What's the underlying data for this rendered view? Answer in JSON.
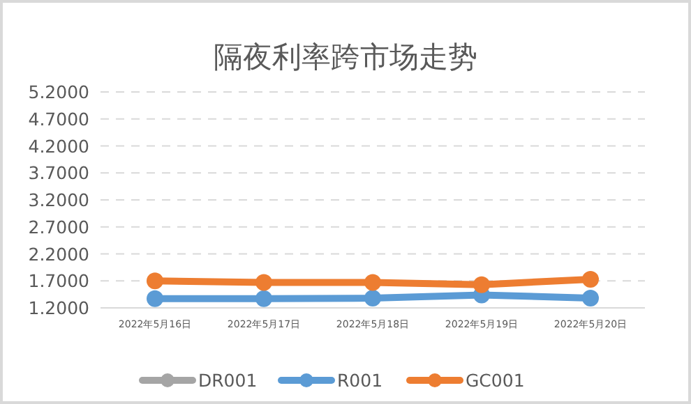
{
  "chart_data": {
    "type": "line",
    "title": "隔夜利率跨市场走势",
    "categories": [
      "2022年5月16日",
      "2022年5月17日",
      "2022年5月18日",
      "2022年5月19日",
      "2022年5月20日"
    ],
    "series": [
      {
        "name": "DR001",
        "color": "#a5a5a5",
        "values": [
          null,
          null,
          null,
          null,
          null
        ]
      },
      {
        "name": "R001",
        "color": "#5b9bd5",
        "values": [
          1.37,
          1.37,
          1.38,
          1.44,
          1.38
        ]
      },
      {
        "name": "GC001",
        "color": "#ed7d31",
        "values": [
          1.7,
          1.67,
          1.67,
          1.63,
          1.73
        ]
      }
    ],
    "ylim": [
      1.2,
      5.2
    ],
    "yticks": [
      {
        "value": 1.2,
        "label": "1.2000"
      },
      {
        "value": 1.7,
        "label": "1.7000"
      },
      {
        "value": 2.2,
        "label": "2.2000"
      },
      {
        "value": 2.7,
        "label": "2.7000"
      },
      {
        "value": 3.2,
        "label": "3.2000"
      },
      {
        "value": 3.7,
        "label": "3.7000"
      },
      {
        "value": 4.2,
        "label": "4.2000"
      },
      {
        "value": 4.7,
        "label": "4.7000"
      },
      {
        "value": 5.2,
        "label": "5.2000"
      }
    ],
    "grid": "y",
    "legend": "bottom",
    "marker": "circle",
    "line_style": "solid"
  }
}
